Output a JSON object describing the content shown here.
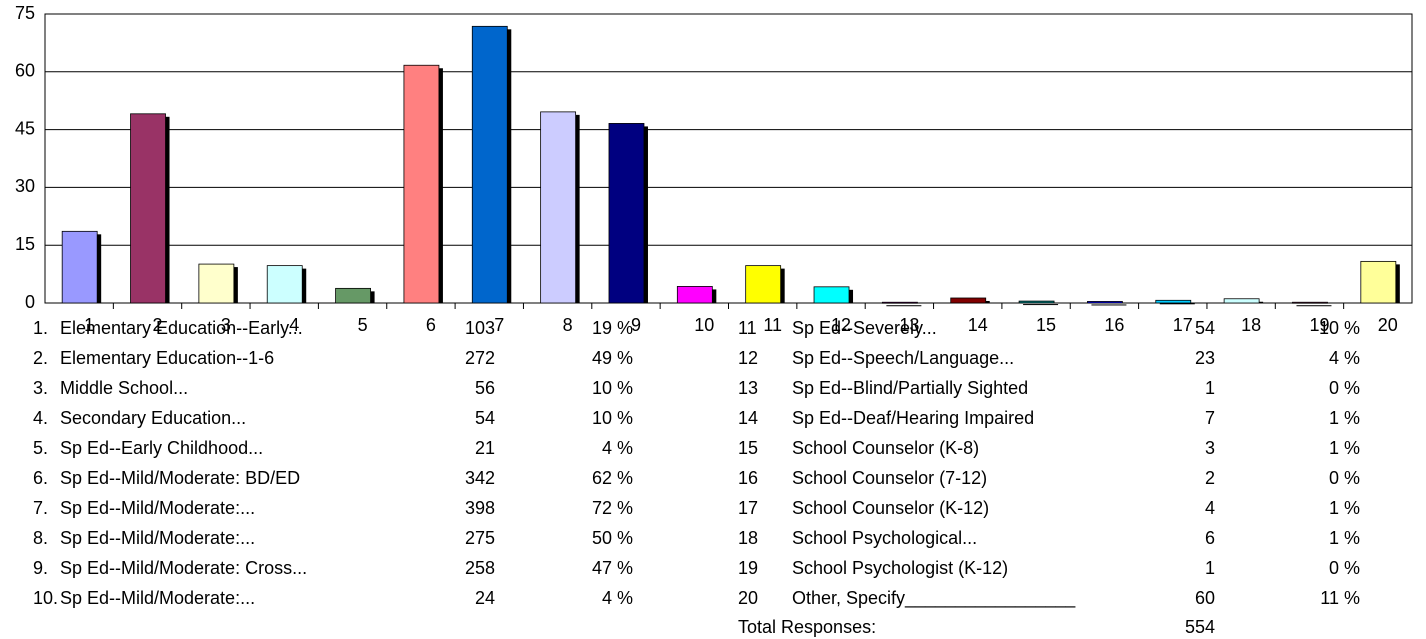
{
  "chart_data": {
    "type": "bar",
    "categories": [
      "1",
      "2",
      "3",
      "4",
      "5",
      "6",
      "7",
      "8",
      "9",
      "10",
      "11",
      "12",
      "13",
      "14",
      "15",
      "16",
      "17",
      "18",
      "19",
      "20"
    ],
    "values": [
      18.6,
      49.1,
      10.1,
      9.7,
      3.8,
      61.7,
      71.8,
      49.6,
      46.6,
      4.3,
      9.7,
      4.2,
      0.2,
      1.3,
      0.5,
      0.4,
      0.7,
      1.1,
      0.2,
      10.8
    ],
    "colors": [
      "#9999ff",
      "#993366",
      "#ffffcc",
      "#ccffff",
      "#669966",
      "#ff8080",
      "#0066cc",
      "#ccccff",
      "#000080",
      "#ff00ff",
      "#ffff00",
      "#00ffff",
      "#800080",
      "#800000",
      "#008080",
      "#0000ff",
      "#00ccff",
      "#ccffff",
      "#993366",
      "#ffff99"
    ],
    "ylim": [
      0,
      75
    ],
    "yticks": [
      0,
      15,
      30,
      45,
      60,
      75
    ],
    "grid": true
  },
  "table": {
    "left": [
      [
        "1.",
        "Elementary Education--Early...",
        "103",
        "19 %"
      ],
      [
        "2.",
        "Elementary Education--1-6",
        "272",
        "49 %"
      ],
      [
        "3.",
        "Middle School...",
        "56",
        "10 %"
      ],
      [
        "4.",
        "Secondary Education...",
        "54",
        "10 %"
      ],
      [
        "5.",
        "Sp Ed--Early Childhood...",
        "21",
        "4 %"
      ],
      [
        "6.",
        "Sp Ed--Mild/Moderate: BD/ED",
        "342",
        "62 %"
      ],
      [
        "7.",
        "Sp Ed--Mild/Moderate:...",
        "398",
        "72 %"
      ],
      [
        "8.",
        "Sp Ed--Mild/Moderate:...",
        "275",
        "50 %"
      ],
      [
        "9.",
        "Sp Ed--Mild/Moderate: Cross...",
        "258",
        "47 %"
      ],
      [
        "10.",
        "Sp Ed--Mild/Moderate:...",
        "24",
        "4 %"
      ]
    ],
    "right": [
      [
        "11",
        "Sp Ed--Severely...",
        "54",
        "10 %"
      ],
      [
        "12",
        "Sp Ed--Speech/Language...",
        "23",
        "4 %"
      ],
      [
        "13",
        "Sp Ed--Blind/Partially Sighted",
        "1",
        "0 %"
      ],
      [
        "14",
        "Sp Ed--Deaf/Hearing Impaired",
        "7",
        "1 %"
      ],
      [
        "15",
        "School Counselor (K-8)",
        "3",
        "1 %"
      ],
      [
        "16",
        "School Counselor (7-12)",
        "2",
        "0 %"
      ],
      [
        "17",
        "School Counselor (K-12)",
        "4",
        "1 %"
      ],
      [
        "18",
        "School Psychological...",
        "6",
        "1 %"
      ],
      [
        "19",
        "School Psychologist (K-12)",
        "1",
        "0 %"
      ],
      [
        "20",
        "Other, Specify_________________",
        "60",
        "11 %"
      ]
    ],
    "total_label": "Total Responses:",
    "total": "554"
  }
}
